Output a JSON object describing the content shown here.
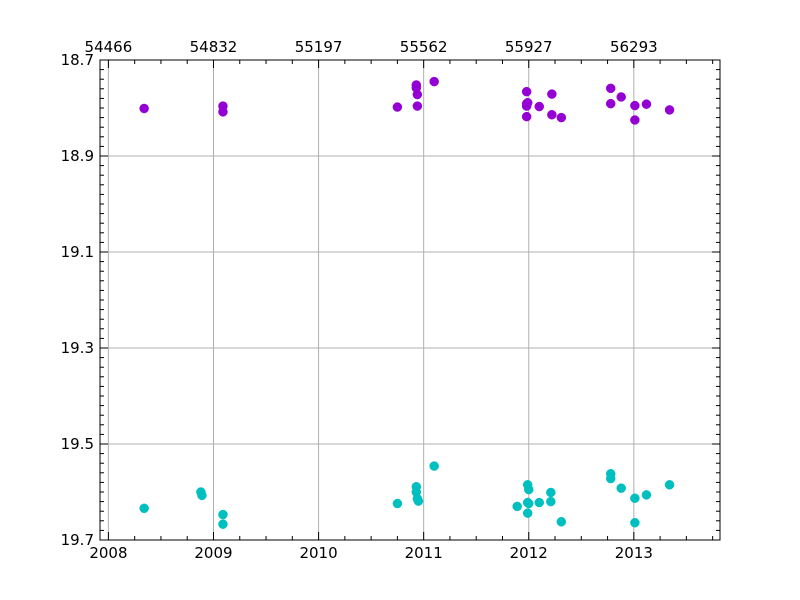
{
  "chart_data": {
    "type": "scatter",
    "title": "",
    "xlabel": "",
    "ylabel": "",
    "grid": true,
    "y_inverted": true,
    "xlim": [
      2007.92,
      2013.82
    ],
    "ylim": [
      19.7,
      18.7
    ],
    "x_ticks_bottom": [
      {
        "value": 2008,
        "label": "2008"
      },
      {
        "value": 2009,
        "label": "2009"
      },
      {
        "value": 2010,
        "label": "2010"
      },
      {
        "value": 2011,
        "label": "2011"
      },
      {
        "value": 2012,
        "label": "2012"
      },
      {
        "value": 2013,
        "label": "2013"
      }
    ],
    "x_ticks_top": [
      {
        "value": 2008,
        "label": "54466"
      },
      {
        "value": 2009,
        "label": "54832"
      },
      {
        "value": 2010,
        "label": "55197"
      },
      {
        "value": 2011,
        "label": "55562"
      },
      {
        "value": 2012,
        "label": "55927"
      },
      {
        "value": 2013,
        "label": "56293"
      }
    ],
    "y_ticks": [
      {
        "value": 18.7,
        "label": "18.7"
      },
      {
        "value": 18.9,
        "label": "18.9"
      },
      {
        "value": 19.1,
        "label": "19.1"
      },
      {
        "value": 19.3,
        "label": "19.3"
      },
      {
        "value": 19.5,
        "label": "19.5"
      },
      {
        "value": 19.7,
        "label": "19.7"
      }
    ],
    "series": [
      {
        "color": "#9400d3",
        "points": [
          [
            2008.34,
            18.801
          ],
          [
            2009.09,
            18.796
          ],
          [
            2009.09,
            18.808
          ],
          [
            2010.75,
            18.798
          ],
          [
            2010.93,
            18.752
          ],
          [
            2010.93,
            18.758
          ],
          [
            2010.94,
            18.772
          ],
          [
            2010.94,
            18.796
          ],
          [
            2011.1,
            18.745
          ],
          [
            2011.98,
            18.766
          ],
          [
            2011.98,
            18.791
          ],
          [
            2011.98,
            18.796
          ],
          [
            2011.99,
            18.789
          ],
          [
            2011.98,
            18.818
          ],
          [
            2012.1,
            18.797
          ],
          [
            2012.22,
            18.771
          ],
          [
            2012.22,
            18.814
          ],
          [
            2012.31,
            18.82
          ],
          [
            2012.78,
            18.759
          ],
          [
            2012.78,
            18.791
          ],
          [
            2012.88,
            18.777
          ],
          [
            2013.01,
            18.795
          ],
          [
            2013.01,
            18.825
          ],
          [
            2013.12,
            18.792
          ],
          [
            2013.34,
            18.804
          ]
        ]
      },
      {
        "color": "#00bfbf",
        "points": [
          [
            2008.34,
            19.634
          ],
          [
            2008.88,
            19.6
          ],
          [
            2008.89,
            19.607
          ],
          [
            2009.09,
            19.647
          ],
          [
            2009.09,
            19.667
          ],
          [
            2010.75,
            19.624
          ],
          [
            2010.93,
            19.589
          ],
          [
            2010.93,
            19.6
          ],
          [
            2010.94,
            19.614
          ],
          [
            2010.95,
            19.619
          ],
          [
            2011.1,
            19.546
          ],
          [
            2011.89,
            19.63
          ],
          [
            2011.99,
            19.585
          ],
          [
            2012.0,
            19.595
          ],
          [
            2011.99,
            19.622
          ],
          [
            2012.0,
            19.624
          ],
          [
            2011.99,
            19.644
          ],
          [
            2012.1,
            19.622
          ],
          [
            2012.21,
            19.601
          ],
          [
            2012.21,
            19.62
          ],
          [
            2012.31,
            19.662
          ],
          [
            2012.78,
            19.562
          ],
          [
            2012.78,
            19.572
          ],
          [
            2012.88,
            19.592
          ],
          [
            2013.01,
            19.613
          ],
          [
            2013.01,
            19.664
          ],
          [
            2013.12,
            19.606
          ],
          [
            2013.34,
            19.585
          ]
        ]
      }
    ]
  }
}
